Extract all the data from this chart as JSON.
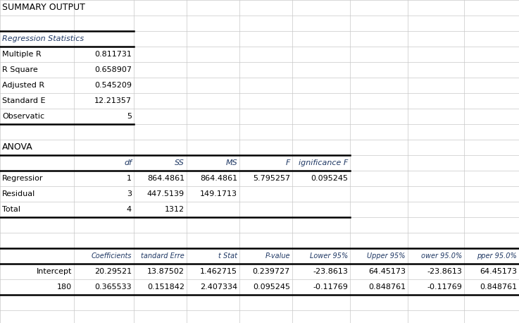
{
  "title": "SUMMARY OUTPUT",
  "reg_stats_label": "Regression Statistics",
  "reg_stats": [
    [
      "Multiple R",
      "0.811731"
    ],
    [
      "R Square",
      "0.658907"
    ],
    [
      "Adjusted R",
      "0.545209"
    ],
    [
      "Standard E",
      "12.21357"
    ],
    [
      "Observatic",
      "5"
    ]
  ],
  "anova_label": "ANOVA",
  "anova_headers": [
    "",
    "df",
    "SS",
    "MS",
    "F",
    "ignificance F"
  ],
  "anova_rows": [
    [
      "Regressior",
      "1",
      "864.4861",
      "864.4861",
      "5.795257",
      "0.095245"
    ],
    [
      "Residual",
      "3",
      "447.5139",
      "149.1713",
      "",
      ""
    ],
    [
      "Total",
      "4",
      "1312",
      "",
      "",
      ""
    ]
  ],
  "coef_headers": [
    "",
    "Coefficients",
    "tandard Erre",
    "t Stat",
    "P-value",
    "Lower 95%",
    "Upper 95%",
    "ower 95.0%",
    "pper 95.0%"
  ],
  "coef_rows": [
    [
      "Intercept",
      "20.29521",
      "13.87502",
      "1.462715",
      "0.239727",
      "-23.8613",
      "64.45173",
      "-23.8613",
      "64.45173"
    ],
    [
      "180",
      "0.365533",
      "0.151842",
      "2.407334",
      "0.095245",
      "-0.11769",
      "0.848761",
      "-0.11769",
      "0.848761"
    ]
  ],
  "bg_color": "#ffffff",
  "grid_color": "#c8c8c8",
  "header_italic_color": "#1F3864",
  "text_color": "#000000",
  "figwidth": 7.37,
  "figheight": 4.58,
  "dpi": 100
}
